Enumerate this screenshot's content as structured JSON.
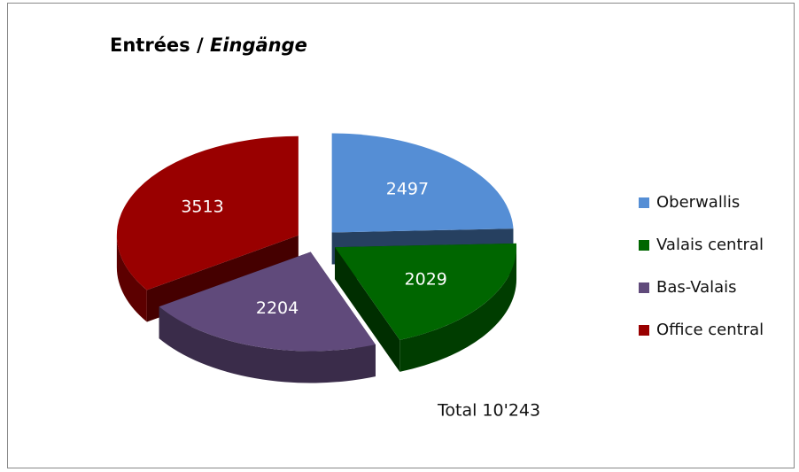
{
  "chart_data": {
    "type": "pie3d",
    "title": "Entrées /",
    "subtitle": "Eingänge",
    "categories": [
      "Oberwallis",
      "Valais central",
      "Bas-Valais",
      "Office central"
    ],
    "values": [
      2497,
      2029,
      2204,
      3513
    ],
    "colors": [
      "#558ed5",
      "#006600",
      "#604a7b",
      "#990000"
    ],
    "annotation": "Total 10'243",
    "legend": "right"
  }
}
